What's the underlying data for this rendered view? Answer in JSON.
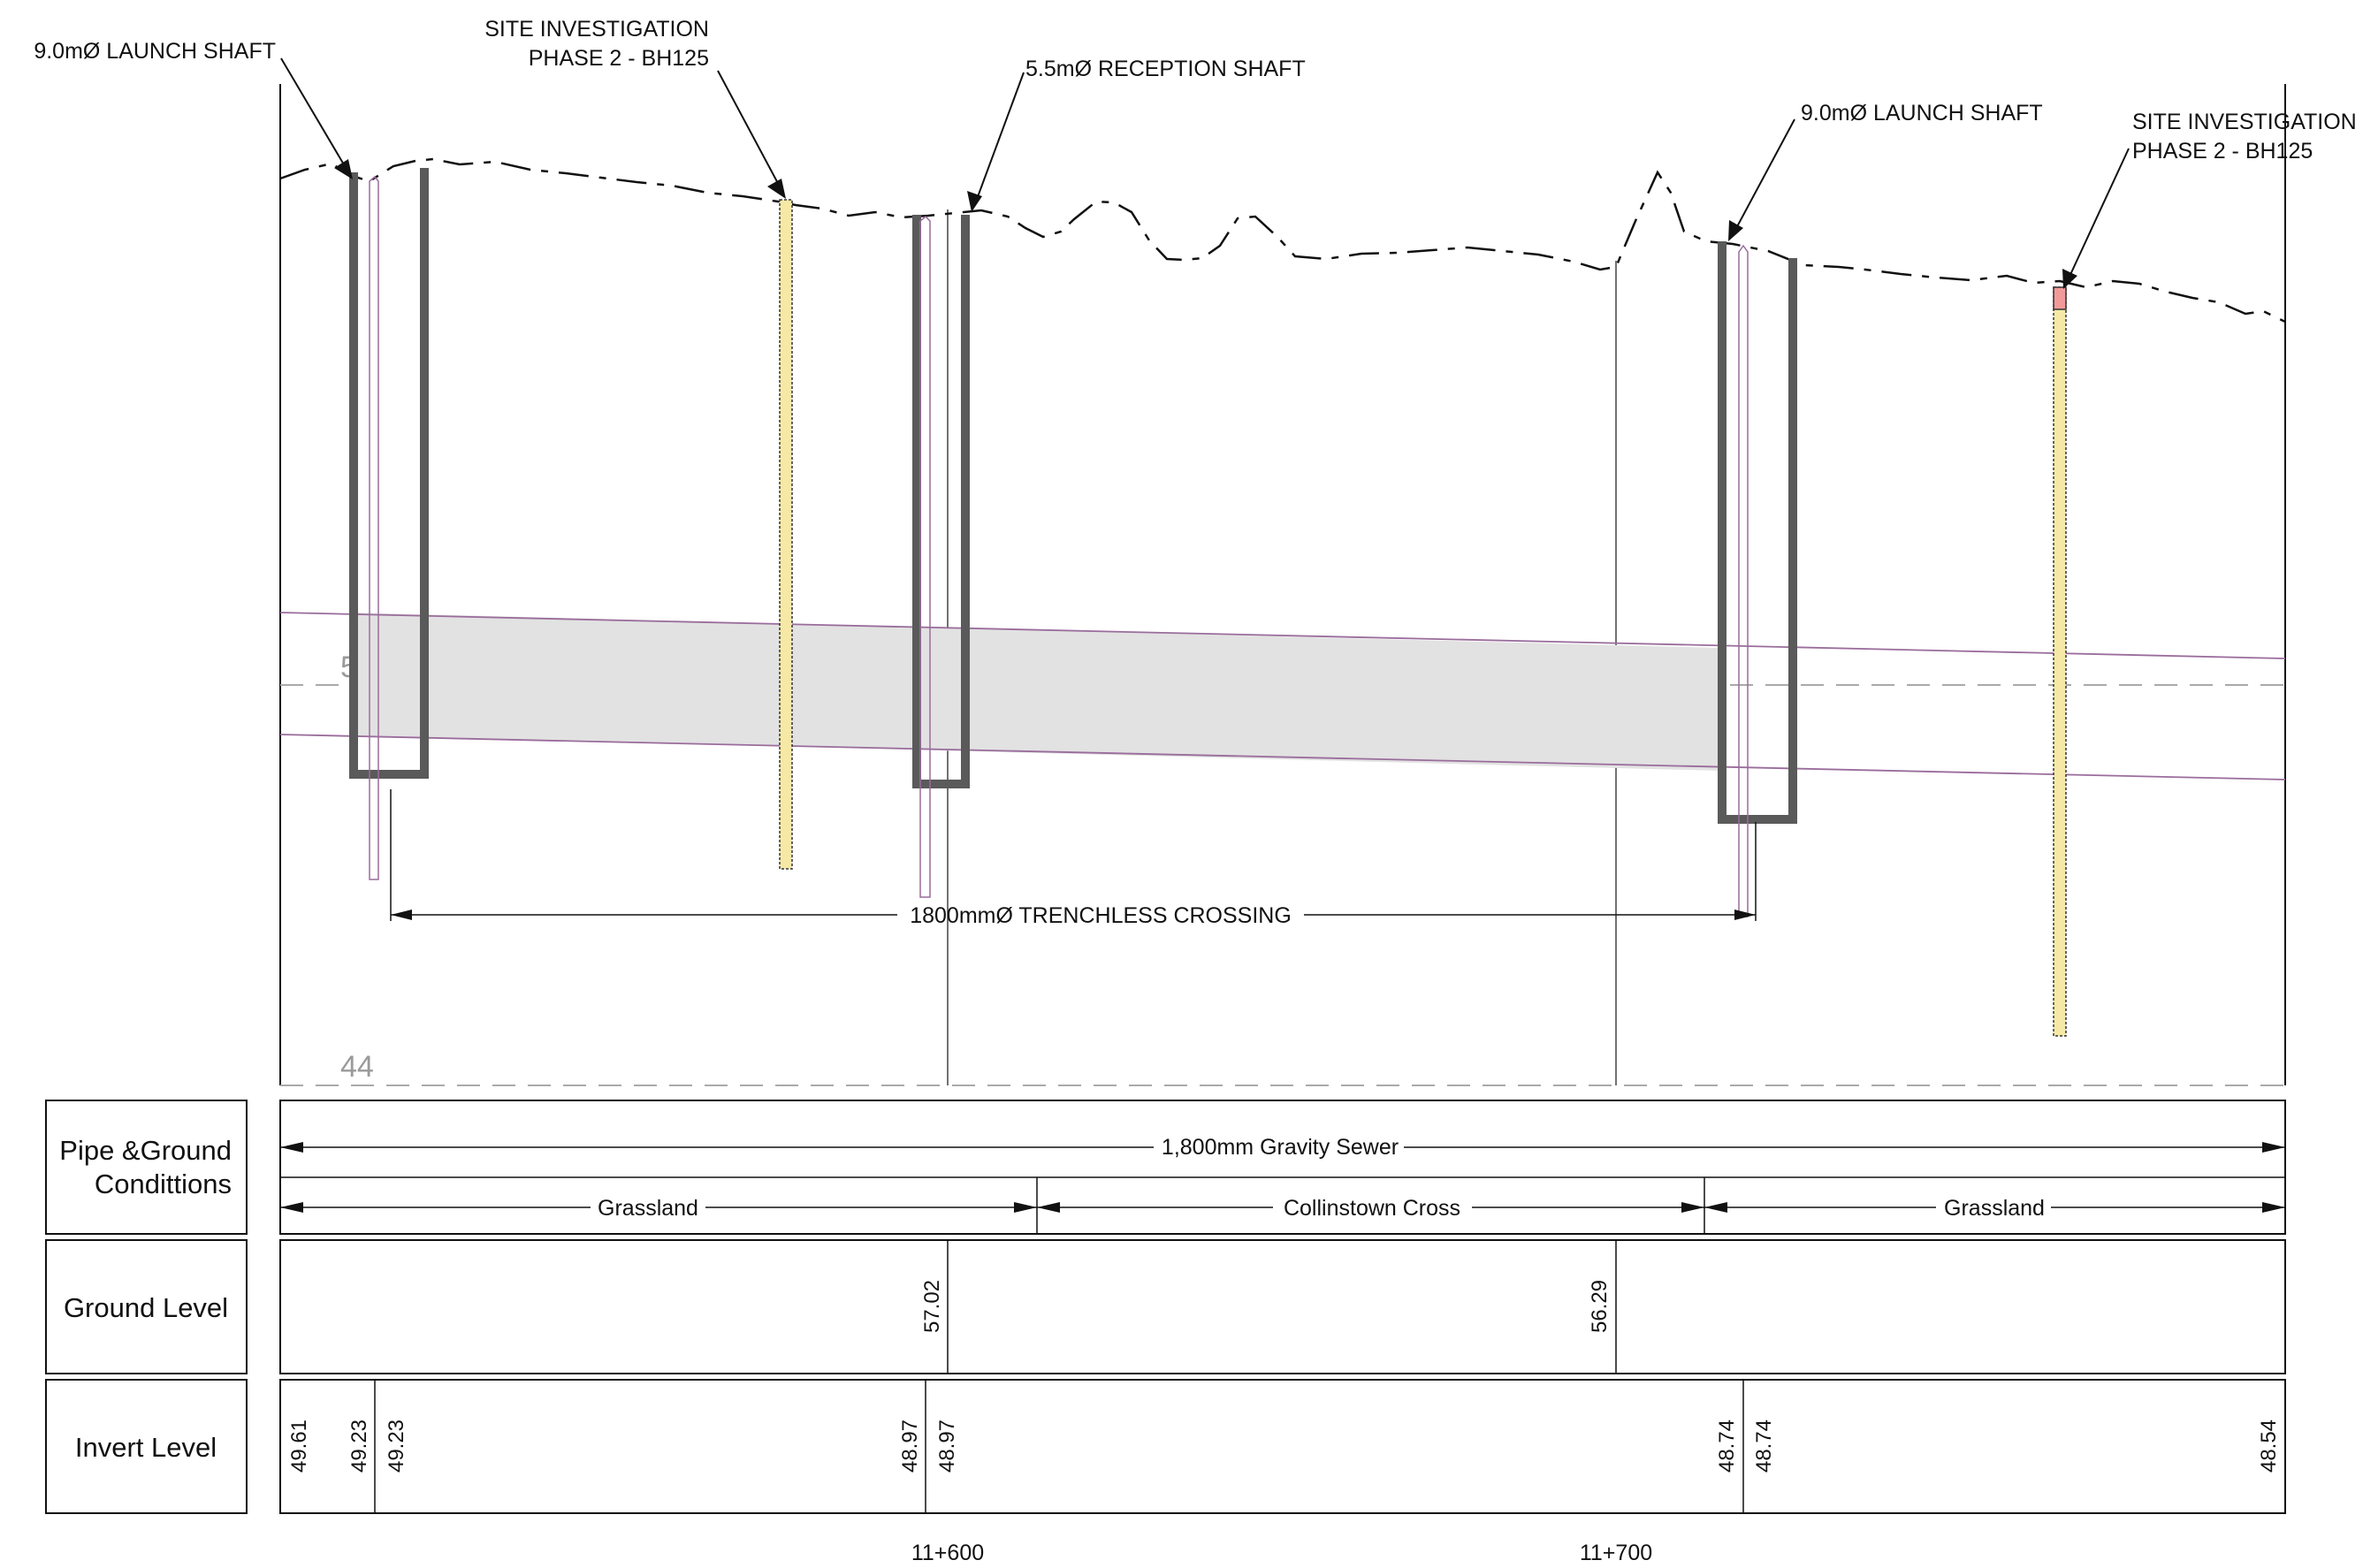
{
  "annotations": {
    "launch_shaft_left": "9.0mØ LAUNCH SHAFT",
    "si_left_line1": "SITE INVESTIGATION",
    "si_left_line2": "PHASE 2 - BH125",
    "reception_shaft": "5.5mØ RECEPTION SHAFT",
    "launch_shaft_right": "9.0mØ LAUNCH SHAFT",
    "si_right_line1": "SITE INVESTIGATION",
    "si_right_line2": "PHASE 2 - BH125",
    "crossing": "1800mmØ TRENCHLESS CROSSING"
  },
  "datum": {
    "upper": "50",
    "lower": "44"
  },
  "table": {
    "pipe_ground_label_line1": "Pipe &Ground",
    "pipe_ground_label_line2": "Condittions",
    "pipe_description": "1,800mm Gravity Sewer",
    "segments": [
      "Grassland",
      "Collinstown Cross",
      "Grassland"
    ],
    "ground_level_label": "Ground Level",
    "ground_levels": [
      "57.02",
      "56.29"
    ],
    "invert_level_label": "Invert Level",
    "invert_levels": [
      "49.61",
      "49.23",
      "49.23",
      "48.97",
      "48.97",
      "48.74",
      "48.74",
      "48.54"
    ]
  },
  "chainages": [
    "11+600",
    "11+700"
  ],
  "colors": {
    "line": "#111111",
    "shaft_wall": "#5a5a5a",
    "pipe_fill": "#e2e2e2",
    "pipe_edge": "#9a6c9c",
    "borehole_fill": "#f6e9a6",
    "borehole_top": "#f29a9a"
  }
}
